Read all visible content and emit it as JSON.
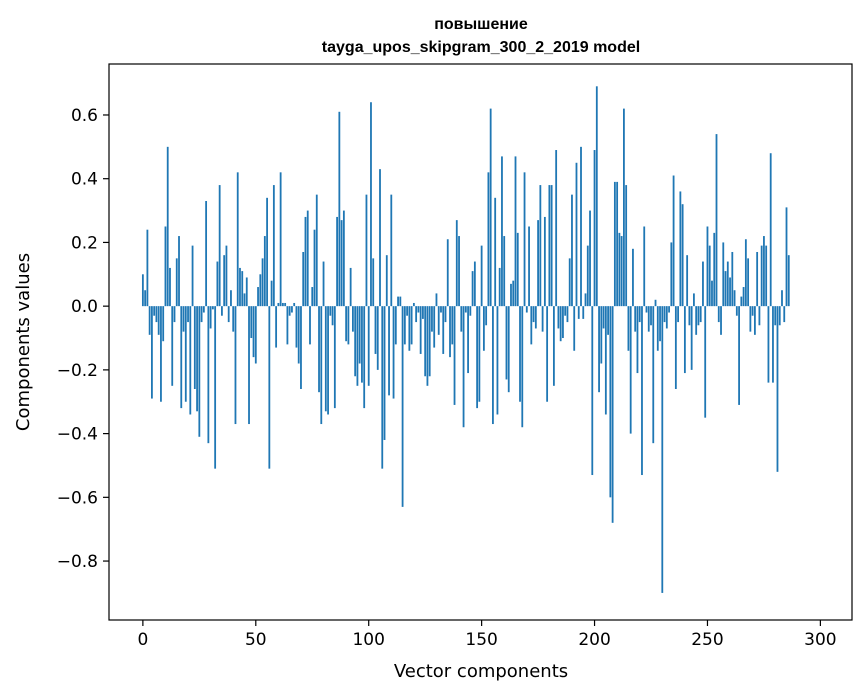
{
  "chart_data": {
    "type": "bar",
    "title_line1": "повышение",
    "title_line2": "tayga_upos_skipgram_300_2_2019 model",
    "xlabel": "Vector components",
    "ylabel": "Components values",
    "xlim": [
      -15,
      314
    ],
    "ylim": [
      -0.985,
      0.76
    ],
    "xticks": [
      0,
      50,
      100,
      150,
      200,
      250,
      300
    ],
    "xtick_labels": [
      "0",
      "50",
      "100",
      "150",
      "200",
      "250",
      "300"
    ],
    "yticks": [
      -0.8,
      -0.6,
      -0.4,
      -0.2,
      0.0,
      0.2,
      0.4,
      0.6
    ],
    "ytick_labels": [
      "−0.8",
      "−0.6",
      "−0.4",
      "−0.2",
      "0.0",
      "0.2",
      "0.4",
      "0.6"
    ],
    "bar_color": "#1f77b4",
    "grid": false,
    "values": [
      0.1,
      0.05,
      0.24,
      -0.09,
      -0.29,
      -0.03,
      -0.05,
      -0.09,
      -0.3,
      -0.11,
      0.25,
      0.5,
      0.12,
      -0.25,
      -0.05,
      0.15,
      0.22,
      -0.32,
      -0.08,
      -0.3,
      -0.05,
      -0.34,
      0.19,
      -0.26,
      -0.33,
      -0.41,
      -0.05,
      -0.02,
      0.33,
      -0.43,
      -0.07,
      -0.01,
      -0.51,
      0.14,
      0.38,
      -0.03,
      0.16,
      0.19,
      -0.05,
      0.05,
      -0.08,
      -0.37,
      0.42,
      0.12,
      0.11,
      0.04,
      0.09,
      -0.37,
      -0.1,
      -0.16,
      -0.18,
      0.06,
      0.1,
      0.15,
      0.22,
      0.34,
      -0.51,
      0.08,
      0.38,
      -0.13,
      0.01,
      0.42,
      0.01,
      0.01,
      -0.12,
      -0.03,
      -0.02,
      0.01,
      -0.13,
      -0.18,
      -0.26,
      0.17,
      0.28,
      0.3,
      -0.12,
      0.06,
      0.24,
      0.35,
      -0.27,
      -0.37,
      0.14,
      -0.33,
      -0.34,
      -0.03,
      -0.06,
      -0.32,
      0.28,
      0.61,
      0.27,
      0.3,
      -0.11,
      -0.12,
      0.12,
      -0.08,
      -0.22,
      -0.25,
      -0.18,
      -0.24,
      -0.32,
      0.35,
      -0.25,
      0.64,
      0.15,
      -0.15,
      -0.2,
      0.43,
      -0.51,
      -0.42,
      0.16,
      -0.28,
      0.35,
      -0.29,
      -0.12,
      0.03,
      0.03,
      -0.63,
      -0.12,
      -0.03,
      -0.14,
      -0.12,
      0.01,
      -0.05,
      -0.02,
      -0.15,
      -0.04,
      -0.22,
      -0.25,
      -0.22,
      -0.08,
      -0.13,
      0.04,
      -0.09,
      -0.02,
      -0.15,
      -0.05,
      0.21,
      -0.16,
      -0.12,
      -0.31,
      0.27,
      0.22,
      -0.08,
      -0.38,
      -0.02,
      -0.21,
      -0.03,
      0.11,
      0.14,
      -0.32,
      -0.3,
      0.19,
      -0.14,
      -0.06,
      0.42,
      0.62,
      -0.37,
      0.34,
      -0.34,
      0.12,
      0.47,
      0.22,
      -0.23,
      -0.27,
      0.07,
      0.08,
      0.47,
      0.23,
      -0.3,
      -0.38,
      0.42,
      -0.02,
      0.25,
      -0.12,
      -0.05,
      -0.07,
      0.27,
      0.38,
      -0.08,
      0.28,
      -0.3,
      0.38,
      0.38,
      -0.25,
      0.49,
      -0.07,
      -0.11,
      -0.1,
      -0.03,
      -0.05,
      0.15,
      0.35,
      -0.14,
      0.45,
      -0.04,
      0.5,
      -0.04,
      0.04,
      0.19,
      0.3,
      -0.53,
      0.49,
      0.69,
      -0.27,
      -0.18,
      -0.07,
      -0.34,
      -0.09,
      -0.6,
      -0.68,
      0.39,
      0.39,
      0.23,
      0.22,
      0.62,
      0.38,
      -0.14,
      -0.4,
      0.18,
      -0.08,
      -0.21,
      -0.05,
      -0.53,
      0.25,
      -0.02,
      -0.08,
      -0.06,
      -0.43,
      0.02,
      -0.14,
      -0.11,
      -0.9,
      -0.05,
      -0.07,
      -0.02,
      0.2,
      0.41,
      -0.26,
      -0.05,
      0.36,
      0.32,
      -0.21,
      0.16,
      -0.06,
      -0.2,
      0.04,
      -0.09,
      -0.06,
      -0.05,
      0.14,
      -0.35,
      0.25,
      0.19,
      0.08,
      0.23,
      0.54,
      -0.05,
      -0.09,
      0.2,
      0.11,
      0.14,
      0.09,
      0.17,
      0.05,
      -0.03,
      -0.31,
      0.03,
      0.06,
      0.21,
      0.15,
      -0.08,
      -0.03,
      -0.09,
      0.17,
      -0.06,
      0.19,
      0.22,
      0.19,
      -0.24,
      0.48,
      -0.24,
      -0.06,
      -0.52,
      -0.06,
      0.05,
      -0.05,
      0.31,
      0.16
    ]
  }
}
